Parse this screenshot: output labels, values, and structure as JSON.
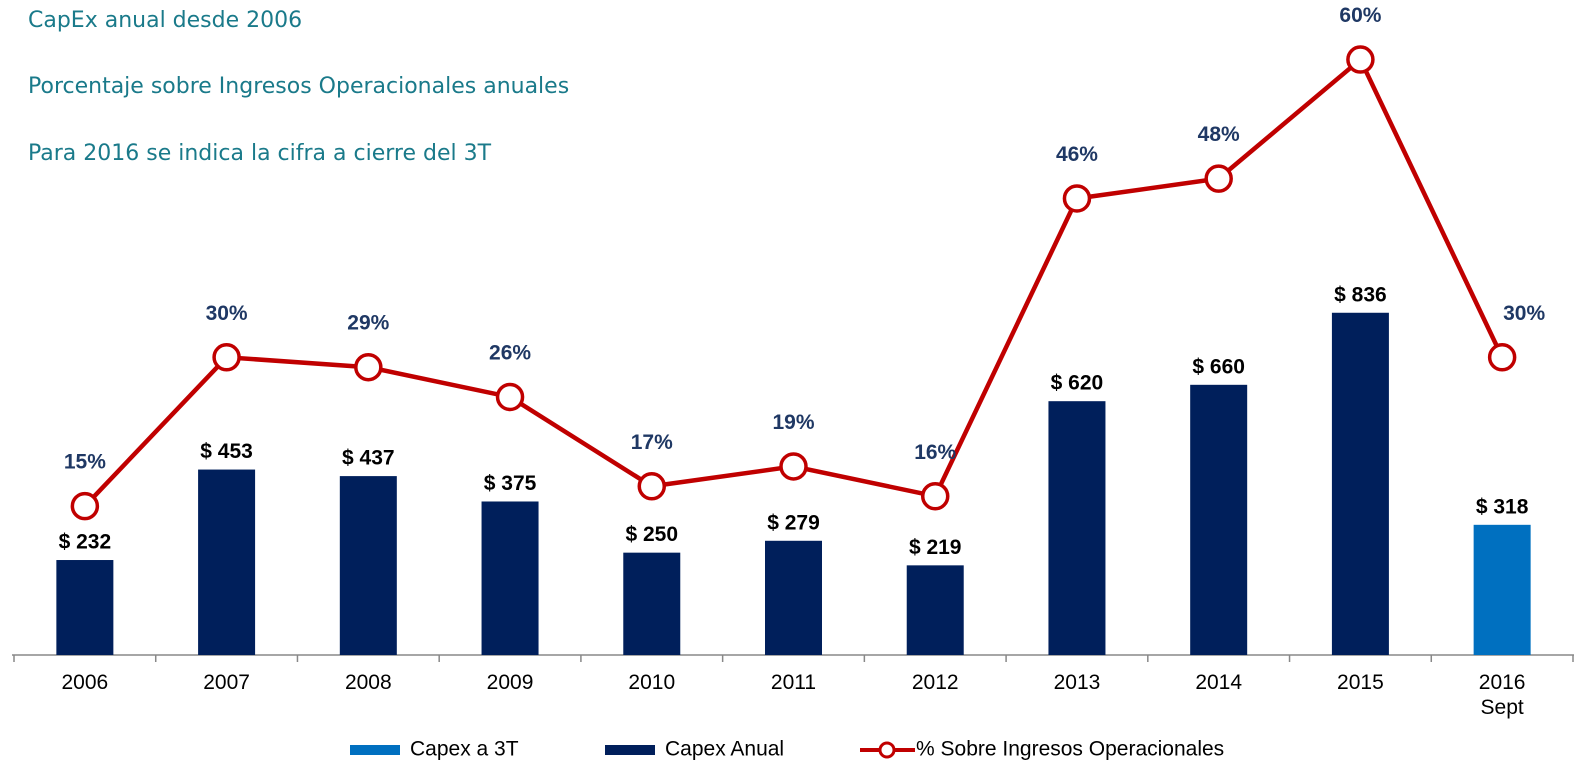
{
  "chart_data": {
    "type": "bar-line",
    "title": "CapEx anual desde 2006",
    "subtitles": [
      "Porcentaje sobre Ingresos Operacionales anuales",
      "Para 2016 se indica la cifra a cierre del 3T"
    ],
    "categories": [
      "2006",
      "2007",
      "2008",
      "2009",
      "2010",
      "2011",
      "2012",
      "2013",
      "2014",
      "2015",
      "2016 Sept"
    ],
    "series": [
      {
        "name": "Capex a 3T",
        "kind": "bar",
        "color": "#0070c0",
        "values": [
          null,
          null,
          null,
          null,
          null,
          null,
          null,
          null,
          null,
          null,
          318
        ],
        "value_labels": [
          null,
          null,
          null,
          null,
          null,
          null,
          null,
          null,
          null,
          null,
          "$ 318"
        ]
      },
      {
        "name": "Capex Anual",
        "kind": "bar",
        "color": "#001f5b",
        "values": [
          232,
          453,
          437,
          375,
          250,
          279,
          219,
          620,
          660,
          836,
          null
        ],
        "value_labels": [
          "$ 232",
          "$ 453",
          "$ 437",
          "$ 375",
          "$ 250",
          "$ 279",
          "$ 219",
          "$ 620",
          "$ 660",
          "$ 836",
          null
        ]
      },
      {
        "name": "% Sobre Ingresos Operacionales",
        "kind": "line",
        "axis": "y2",
        "color": "#c00000",
        "values": [
          15,
          30,
          29,
          26,
          17,
          19,
          16,
          46,
          48,
          60,
          30
        ],
        "value_labels": [
          "15%",
          "30%",
          "29%",
          "26%",
          "17%",
          "19%",
          "16%",
          "46%",
          "48%",
          "60%",
          "30%"
        ]
      }
    ],
    "ylim": [
      0,
      1600
    ],
    "y2lim": [
      0,
      66
    ]
  }
}
